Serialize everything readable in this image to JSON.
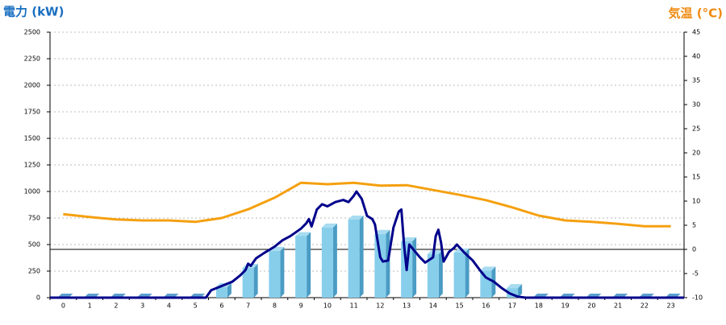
{
  "chart_data": {
    "type": "bar",
    "y_title": "電力 (kW)",
    "y2_title": "気温 (°C)",
    "categories": [
      "0",
      "1",
      "2",
      "3",
      "4",
      "5",
      "6",
      "7",
      "8",
      "9",
      "10",
      "11",
      "12",
      "13",
      "14",
      "15",
      "16",
      "17",
      "18",
      "19",
      "20",
      "21",
      "22",
      "23"
    ],
    "ylim": [
      0,
      2500
    ],
    "yticks": [
      0,
      250,
      500,
      750,
      1000,
      1250,
      1500,
      1750,
      2000,
      2250,
      2500
    ],
    "y2lim": [
      -10,
      45
    ],
    "y2ticks": [
      -10,
      -5,
      0,
      5,
      10,
      15,
      20,
      25,
      30,
      35,
      40,
      45
    ],
    "y2_line": 0,
    "grid": true,
    "series": [
      {
        "type": "bar",
        "color": "#87ceeb",
        "values": [
          0,
          0,
          0,
          0,
          0,
          0,
          100,
          280,
          440,
          580,
          660,
          735,
          600,
          530,
          410,
          425,
          255,
          90,
          0,
          0,
          0,
          0,
          0,
          0
        ]
      },
      {
        "type": "line",
        "axis": "y2",
        "color": "#f5a00f",
        "values": [
          7.3,
          6.7,
          6.2,
          6,
          6,
          5.7,
          6.5,
          8.3,
          10.7,
          13.8,
          13.5,
          13.8,
          13.2,
          13.3,
          12.3,
          11.3,
          10.2,
          8.7,
          7,
          6,
          5.7,
          5.3,
          4.8,
          4.8
        ]
      },
      {
        "type": "line",
        "color": "#00008b",
        "x": [
          -0.5,
          5.4,
          5.6,
          6,
          6.4,
          6.7,
          6.9,
          7.0,
          7.1,
          7.3,
          7.6,
          8,
          8.3,
          8.6,
          9,
          9.2,
          9.3,
          9.4,
          9.6,
          9.8,
          10,
          10.3,
          10.6,
          10.8,
          11,
          11.1,
          11.3,
          11.5,
          11.7,
          11.8,
          12,
          12.1,
          12.3,
          12.5,
          12.7,
          12.8,
          12.9,
          13,
          13.1,
          13.3,
          13.5,
          13.7,
          14,
          14.1,
          14.2,
          14.3,
          14.4,
          14.6,
          14.8,
          14.9,
          15.2,
          15.5,
          15.8,
          16,
          16.3,
          16.6,
          16.9,
          17.2,
          17.5,
          23.5
        ],
        "values": [
          0,
          0,
          70,
          110,
          150,
          210,
          260,
          320,
          300,
          370,
          420,
          480,
          540,
          580,
          650,
          700,
          740,
          670,
          830,
          880,
          860,
          900,
          920,
          900,
          960,
          1000,
          930,
          770,
          740,
          690,
          380,
          340,
          350,
          660,
          810,
          830,
          500,
          260,
          500,
          440,
          380,
          330,
          380,
          580,
          640,
          520,
          340,
          430,
          470,
          500,
          420,
          350,
          250,
          190,
          150,
          90,
          40,
          10,
          0,
          0
        ]
      }
    ]
  }
}
